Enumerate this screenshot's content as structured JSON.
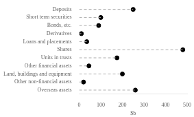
{
  "chart_data": {
    "type": "dot",
    "orientation": "horizontal",
    "categories": [
      "Deposits",
      "Short term securities",
      "Bonds, etc.",
      "Derivatives",
      "Loans and placements",
      "Shares",
      "Units in trusts",
      "Other financial assets",
      "Land, buildings and equipment",
      "Other non-financial assets",
      "Overseas assets"
    ],
    "values": [
      250,
      100,
      90,
      10,
      35,
      480,
      175,
      45,
      200,
      20,
      260
    ],
    "xlabel": "$b",
    "xlim": [
      0,
      500
    ],
    "xticks": [
      0,
      100,
      200,
      300,
      400,
      500
    ],
    "color": "#000000",
    "marker": "circle",
    "line_style": "dashed",
    "grid": false
  }
}
